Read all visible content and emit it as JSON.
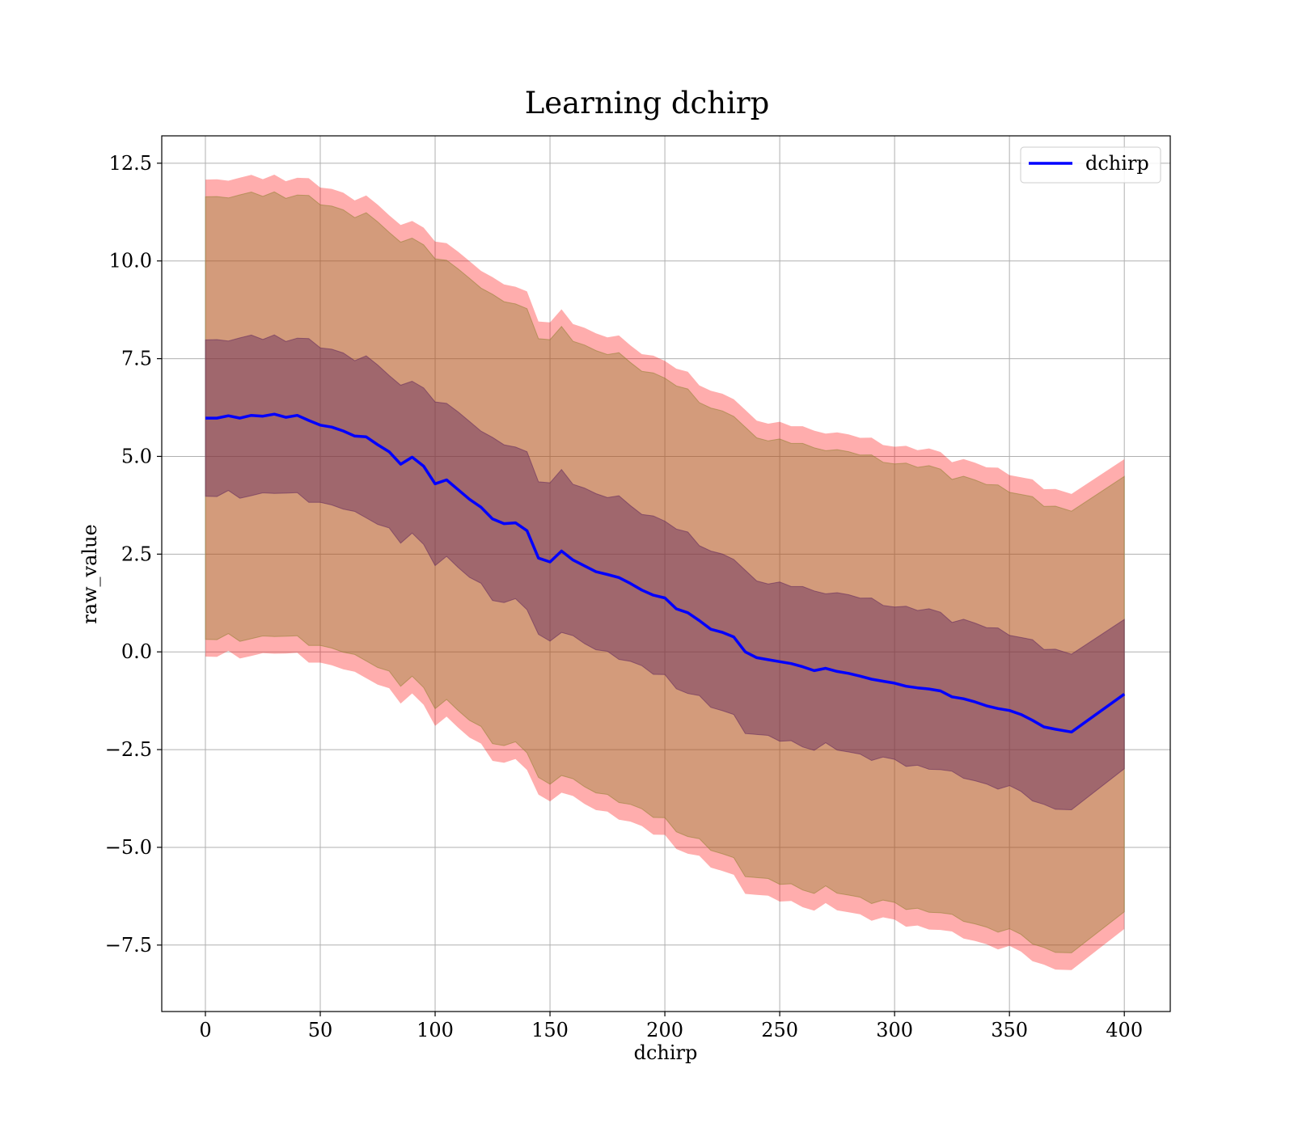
{
  "chart_data": {
    "type": "area",
    "title": "Learning dchirp",
    "xlabel": "dchirp",
    "ylabel": "raw_value",
    "xlim": [
      -19,
      420
    ],
    "ylim": [
      -9.2,
      13.2
    ],
    "xticks": [
      0,
      50,
      100,
      150,
      200,
      250,
      300,
      350,
      400
    ],
    "yticks": [
      -7.5,
      -5.0,
      -2.5,
      0.0,
      2.5,
      5.0,
      7.5,
      10.0,
      12.5
    ],
    "xtick_labels": [
      "0",
      "50",
      "100",
      "150",
      "200",
      "250",
      "300",
      "350",
      "400"
    ],
    "ytick_labels": [
      "−7.5",
      "−5.0",
      "−2.5",
      "0.0",
      "2.5",
      "5.0",
      "7.5",
      "10.0",
      "12.5"
    ],
    "grid": true,
    "legend_position": "upper right",
    "legend": [
      "dchirp"
    ],
    "colors": {
      "line": "#0000ff",
      "outer_band": "#ff0000",
      "outer_band_opacity": 0.32,
      "middle_band": "#8b7d2a",
      "middle_band_opacity": 0.38,
      "inner_band": "#5a1f5a",
      "inner_band_opacity": 0.42,
      "grid": "#b0b0b0"
    },
    "series": [
      {
        "name": "dchirp",
        "x": [
          0,
          5,
          10,
          15,
          20,
          25,
          30,
          35,
          40,
          45,
          50,
          55,
          60,
          65,
          70,
          75,
          80,
          85,
          90,
          95,
          100,
          105,
          110,
          115,
          120,
          125,
          130,
          135,
          140,
          145,
          150,
          155,
          160,
          165,
          170,
          175,
          180,
          185,
          190,
          195,
          200,
          205,
          210,
          215,
          220,
          225,
          230,
          235,
          240,
          245,
          250,
          255,
          260,
          265,
          270,
          275,
          280,
          285,
          290,
          295,
          300,
          305,
          310,
          315,
          320,
          325,
          330,
          335,
          340,
          345,
          350,
          355,
          360,
          365,
          370,
          377,
          400
        ],
        "y": [
          5.98,
          5.98,
          6.04,
          5.98,
          6.05,
          6.03,
          6.08,
          6.0,
          6.05,
          5.92,
          5.8,
          5.75,
          5.65,
          5.52,
          5.5,
          5.3,
          5.12,
          4.8,
          4.98,
          4.75,
          4.3,
          4.4,
          4.15,
          3.9,
          3.7,
          3.4,
          3.28,
          3.3,
          3.1,
          2.4,
          2.3,
          2.58,
          2.35,
          2.2,
          2.05,
          1.98,
          1.9,
          1.75,
          1.58,
          1.45,
          1.38,
          1.1,
          1.0,
          0.8,
          0.58,
          0.5,
          0.38,
          0.0,
          -0.15,
          -0.2,
          -0.25,
          -0.3,
          -0.38,
          -0.48,
          -0.42,
          -0.5,
          -0.55,
          -0.62,
          -0.7,
          -0.75,
          -0.8,
          -0.88,
          -0.92,
          -0.95,
          -1.0,
          -1.15,
          -1.2,
          -1.28,
          -1.38,
          -1.45,
          -1.5,
          -1.6,
          -1.75,
          -1.92,
          -1.98,
          -2.05,
          -1.08
        ],
        "inner_std": 2.0,
        "middle_std": 5.66,
        "outer_std": 6.1
      }
    ]
  }
}
